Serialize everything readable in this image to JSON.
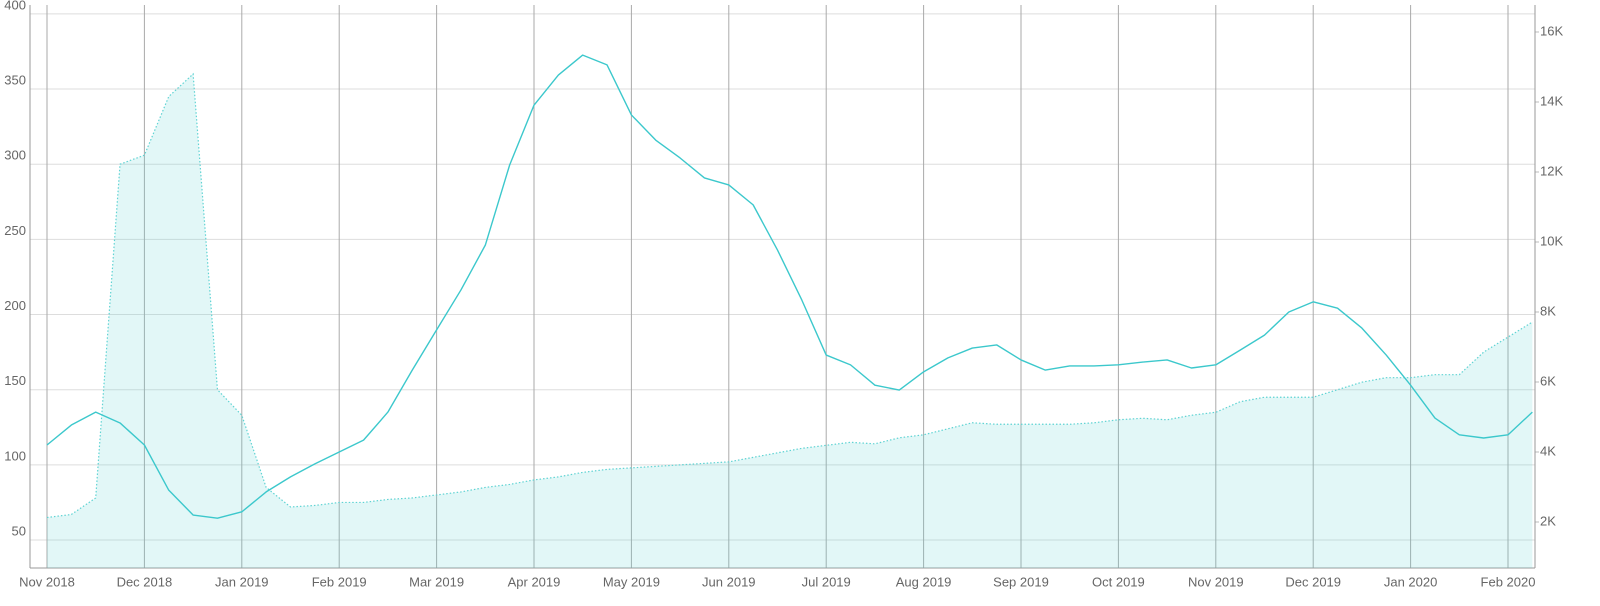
{
  "chart_data": {
    "type": "line",
    "categories": [
      "Nov 2018",
      null,
      null,
      null,
      "Dec 2018",
      null,
      null,
      null,
      "Jan 2019",
      null,
      null,
      null,
      "Feb 2019",
      null,
      null,
      null,
      "Mar 2019",
      null,
      null,
      null,
      "Apr 2019",
      null,
      null,
      null,
      "May 2019",
      null,
      null,
      null,
      "Jun 2019",
      null,
      null,
      null,
      "Jul 2019",
      null,
      null,
      null,
      "Aug 2019",
      null,
      null,
      null,
      "Sep 2019",
      null,
      null,
      null,
      "Oct 2019",
      null,
      null,
      null,
      "Nov 2019",
      null,
      null,
      null,
      "Dec 2019",
      null,
      null,
      null,
      "Jan 2020",
      null,
      null,
      null,
      "Feb 2020",
      null
    ],
    "series": [
      {
        "type": "area",
        "color": "#5fd3d3",
        "values": [
          65,
          67,
          78,
          300,
          306,
          345,
          360,
          150,
          133,
          85,
          72,
          73,
          75,
          75,
          77,
          78,
          80,
          82,
          85,
          87,
          90,
          92,
          95,
          97,
          98,
          99,
          100,
          101,
          102,
          105,
          108,
          111,
          113,
          115,
          114,
          118,
          120,
          124,
          128,
          127,
          127,
          127,
          127,
          128,
          130,
          131,
          130,
          133,
          135,
          142,
          145,
          145,
          145,
          150,
          155,
          158,
          158,
          160,
          160,
          175,
          185,
          195
        ]
      },
      {
        "type": "line",
        "axis": "y2",
        "color": "#3cc8cc",
        "values": [
          4200,
          4770,
          5140,
          4830,
          4200,
          2910,
          2200,
          2110,
          2290,
          2860,
          3290,
          3660,
          4000,
          4340,
          5140,
          6340,
          7490,
          8630,
          9910,
          12200,
          13910,
          14770,
          15340,
          15060,
          13630,
          12910,
          12400,
          11830,
          11630,
          11060,
          9770,
          8340,
          6770,
          6490,
          5910,
          5770,
          6290,
          6690,
          6970,
          7060,
          6630,
          6340,
          6460,
          6460,
          6490,
          6570,
          6630,
          6400,
          6490,
          6910,
          7340,
          8000,
          8290,
          8110,
          7540,
          6770,
          5910,
          4970,
          4490,
          4400,
          4490,
          5140
        ]
      }
    ],
    "ylim": [
      31.4,
      405.9
    ],
    "yticks": [
      50,
      100,
      150,
      200,
      250,
      300,
      350,
      400
    ],
    "y2lim": [
      686,
      16771
    ],
    "y2ticks": [
      {
        "value": 2000,
        "label": "2K"
      },
      {
        "value": 4000,
        "label": "4K"
      },
      {
        "value": 6000,
        "label": "6K"
      },
      {
        "value": 8000,
        "label": "8K"
      },
      {
        "value": 10000,
        "label": "10K"
      },
      {
        "value": 12000,
        "label": "12K"
      },
      {
        "value": 14000,
        "label": "14K"
      },
      {
        "value": 16000,
        "label": "16K"
      }
    ],
    "grid": true
  }
}
